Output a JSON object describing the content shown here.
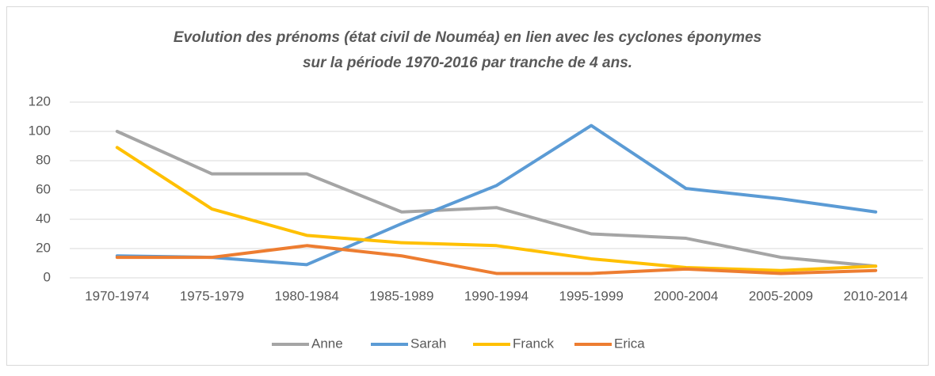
{
  "chart_data": {
    "type": "line",
    "title": [
      "Evolution des prénoms (état civil de Nouméa) en lien avec les cyclones éponymes",
      "sur la période 1970-2016 par tranche de 4 ans."
    ],
    "categories": [
      "1970-1974",
      "1975-1979",
      "1980-1984",
      "1985-1989",
      "1990-1994",
      "1995-1999",
      "2000-2004",
      "2005-2009",
      "2010-2014"
    ],
    "series": [
      {
        "name": "Anne",
        "color": "#a5a5a5",
        "values": [
          100,
          71,
          71,
          45,
          48,
          30,
          27,
          14,
          8
        ]
      },
      {
        "name": "Sarah",
        "color": "#5b9bd5",
        "values": [
          15,
          14,
          9,
          37,
          63,
          104,
          61,
          54,
          45
        ]
      },
      {
        "name": "Franck",
        "color": "#ffc000",
        "values": [
          89,
          47,
          29,
          24,
          22,
          13,
          7,
          5,
          8
        ]
      },
      {
        "name": "Erica",
        "color": "#ed7d31",
        "values": [
          14,
          14,
          22,
          15,
          3,
          3,
          6,
          3,
          5
        ]
      }
    ],
    "ylim": [
      0,
      120
    ],
    "yticks": [
      0,
      20,
      40,
      60,
      80,
      100,
      120
    ],
    "grid": true,
    "legend": "bottom"
  }
}
